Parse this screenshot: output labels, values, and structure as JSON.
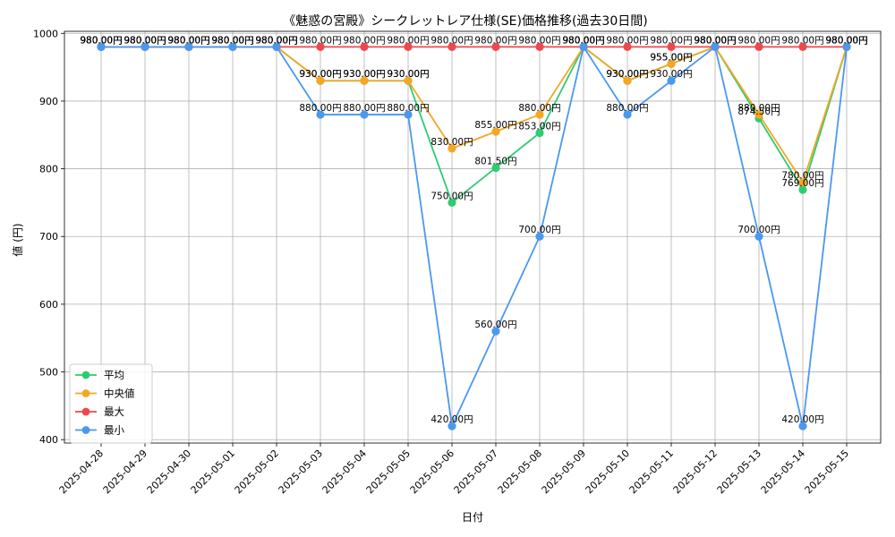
{
  "chart_data": {
    "type": "line",
    "title": "《魅惑の宮殿》シークレットレア仕様(SE)価格推移(過去30日間)",
    "xlabel": "日付",
    "ylabel": "値 (円)",
    "ylim": [
      395,
      1003
    ],
    "yticks": [
      400,
      500,
      600,
      700,
      800,
      900,
      1000
    ],
    "grid": true,
    "legend_position": "bottom-left",
    "label_suffix": "円",
    "categories": [
      "2025-04-28",
      "2025-04-29",
      "2025-04-30",
      "2025-05-01",
      "2025-05-02",
      "2025-05-03",
      "2025-05-04",
      "2025-05-05",
      "2025-05-06",
      "2025-05-07",
      "2025-05-08",
      "2025-05-09",
      "2025-05-10",
      "2025-05-11",
      "2025-05-12",
      "2025-05-13",
      "2025-05-14",
      "2025-05-15"
    ],
    "series": [
      {
        "name": "平均",
        "color": "#2ecc71",
        "values": [
          980,
          980,
          980,
          980,
          980,
          930,
          930,
          930,
          750,
          801.5,
          853,
          980,
          930,
          955,
          980,
          874.5,
          769,
          980
        ]
      },
      {
        "name": "中央値",
        "color": "#f5a623",
        "values": [
          980,
          980,
          980,
          980,
          980,
          930,
          930,
          930,
          830,
          855,
          880,
          980,
          930,
          955,
          980,
          880,
          780,
          980
        ]
      },
      {
        "name": "最大",
        "color": "#f0474c",
        "values": [
          980,
          980,
          980,
          980,
          980,
          980,
          980,
          980,
          980,
          980,
          980,
          980,
          980,
          980,
          980,
          980,
          980,
          980
        ]
      },
      {
        "name": "最小",
        "color": "#4a98f0",
        "values": [
          980,
          980,
          980,
          980,
          980,
          880,
          880,
          880,
          420,
          560,
          700,
          980,
          880,
          930,
          980,
          700,
          420,
          980
        ]
      }
    ]
  }
}
